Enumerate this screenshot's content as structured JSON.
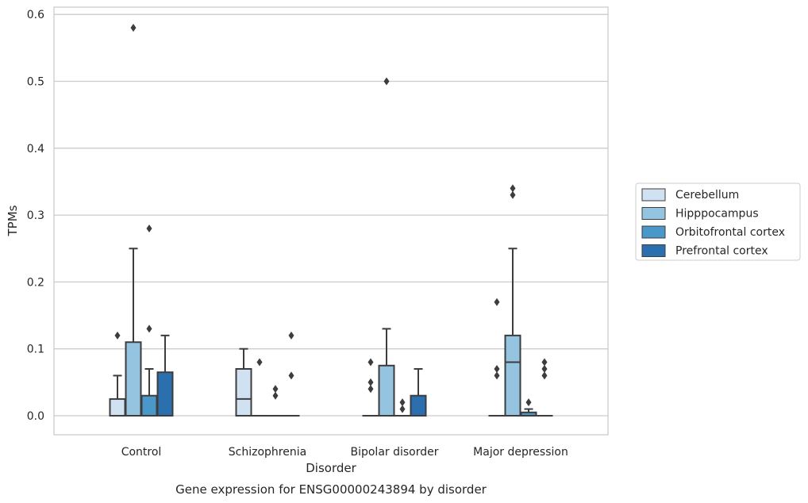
{
  "chart_data": {
    "type": "box",
    "title": "",
    "caption": "Gene expression for ENSG00000243894 by disorder",
    "xlabel": "Disorder",
    "ylabel": "TPMs",
    "ylim": [
      -0.03,
      0.61
    ],
    "yticks": [
      "0.0",
      "0.1",
      "0.2",
      "0.3",
      "0.4",
      "0.5",
      "0.6"
    ],
    "grid": "horizontal",
    "legend_position": "right",
    "categories": [
      "Control",
      "Schizophrenia",
      "Bipolar disorder",
      "Major depression"
    ],
    "series": [
      {
        "name": "Cerebellum",
        "color": "#d0e1f2",
        "boxes": [
          {
            "q1": 0.0,
            "median": 0.0,
            "q3": 0.025,
            "whislo": 0.0,
            "whishi": 0.06,
            "fliers": [
              0.12
            ]
          },
          {
            "q1": 0.0,
            "median": 0.025,
            "q3": 0.07,
            "whislo": 0.0,
            "whishi": 0.1,
            "fliers": []
          },
          {
            "q1": 0.0,
            "median": 0.0,
            "q3": 0.0,
            "whislo": 0.0,
            "whishi": 0.0,
            "fliers": [
              0.08,
              0.05,
              0.04
            ]
          },
          {
            "q1": 0.0,
            "median": 0.0,
            "q3": 0.0,
            "whislo": 0.0,
            "whishi": 0.0,
            "fliers": [
              0.17,
              0.07,
              0.06
            ]
          }
        ]
      },
      {
        "name": "Hipppocampus",
        "color": "#94c4df",
        "boxes": [
          {
            "q1": 0.0,
            "median": 0.0,
            "q3": 0.11,
            "whislo": 0.0,
            "whishi": 0.25,
            "fliers": [
              0.58
            ]
          },
          {
            "q1": 0.0,
            "median": 0.0,
            "q3": 0.0,
            "whislo": 0.0,
            "whishi": 0.0,
            "fliers": [
              0.08
            ]
          },
          {
            "q1": 0.0,
            "median": 0.0,
            "q3": 0.075,
            "whislo": 0.0,
            "whishi": 0.13,
            "fliers": [
              0.5
            ]
          },
          {
            "q1": 0.0,
            "median": 0.08,
            "q3": 0.12,
            "whislo": 0.0,
            "whishi": 0.25,
            "fliers": [
              0.34,
              0.33
            ]
          }
        ]
      },
      {
        "name": "Orbitofrontal cortex",
        "color": "#4a98c9",
        "boxes": [
          {
            "q1": 0.0,
            "median": 0.0,
            "q3": 0.03,
            "whislo": 0.0,
            "whishi": 0.07,
            "fliers": [
              0.28,
              0.13
            ]
          },
          {
            "q1": 0.0,
            "median": 0.0,
            "q3": 0.0,
            "whislo": 0.0,
            "whishi": 0.0,
            "fliers": [
              0.04,
              0.03
            ]
          },
          {
            "q1": 0.0,
            "median": 0.0,
            "q3": 0.0,
            "whislo": 0.0,
            "whishi": 0.0,
            "fliers": [
              0.02,
              0.01
            ]
          },
          {
            "q1": 0.0,
            "median": 0.0,
            "q3": 0.005,
            "whislo": 0.0,
            "whishi": 0.01,
            "fliers": [
              0.02
            ]
          }
        ]
      },
      {
        "name": "Prefrontal cortex",
        "color": "#2c6fae",
        "boxes": [
          {
            "q1": 0.0,
            "median": 0.0,
            "q3": 0.065,
            "whislo": 0.0,
            "whishi": 0.12,
            "fliers": []
          },
          {
            "q1": 0.0,
            "median": 0.0,
            "q3": 0.0,
            "whislo": 0.0,
            "whishi": 0.0,
            "fliers": [
              0.12,
              0.06
            ]
          },
          {
            "q1": 0.0,
            "median": 0.0,
            "q3": 0.03,
            "whislo": 0.0,
            "whishi": 0.07,
            "fliers": []
          },
          {
            "q1": 0.0,
            "median": 0.0,
            "q3": 0.0,
            "whislo": 0.0,
            "whishi": 0.0,
            "fliers": [
              0.08,
              0.07,
              0.06
            ]
          }
        ]
      }
    ]
  }
}
